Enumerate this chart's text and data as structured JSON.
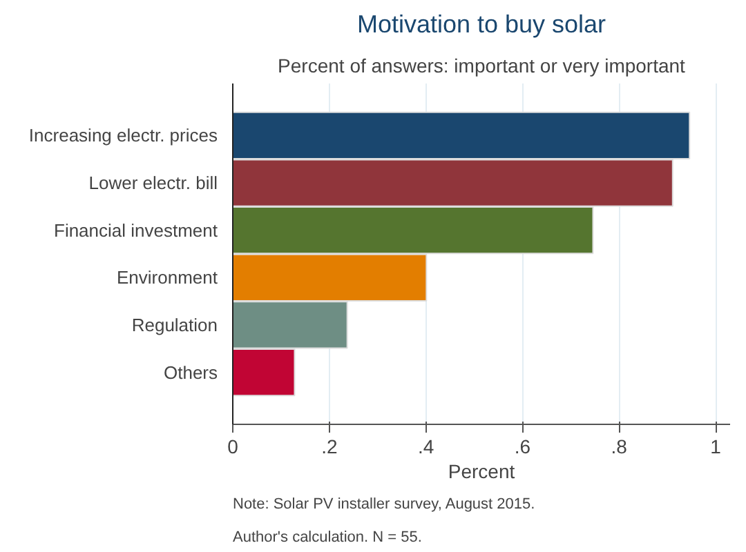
{
  "chart_data": {
    "type": "bar",
    "orientation": "horizontal",
    "title": "Motivation to buy solar",
    "subtitle": "Percent of answers: important or very important",
    "xlabel": "Percent",
    "categories": [
      "Increasing electr. prices",
      "Lower electr. bill",
      "Financial investment",
      "Environment",
      "Regulation",
      "Others"
    ],
    "values": [
      0.946,
      0.911,
      0.746,
      0.401,
      0.237,
      0.128
    ],
    "colors": [
      "#1a476f",
      "#90353b",
      "#55752f",
      "#e37e00",
      "#6e8e84",
      "#c10534"
    ],
    "xlim": [
      0,
      1.03
    ],
    "xticks": [
      0,
      {
        "value": 0.2,
        "label": ".2"
      },
      {
        "value": 0.4,
        "label": ".4"
      },
      {
        "value": 0.6,
        "label": ".6"
      },
      {
        "value": 0.8,
        "label": ".8"
      },
      1
    ],
    "grid": "x",
    "annotations": [
      "Note: Solar PV installer survey, August 2015.",
      "Author's calculation. N = 55."
    ]
  }
}
